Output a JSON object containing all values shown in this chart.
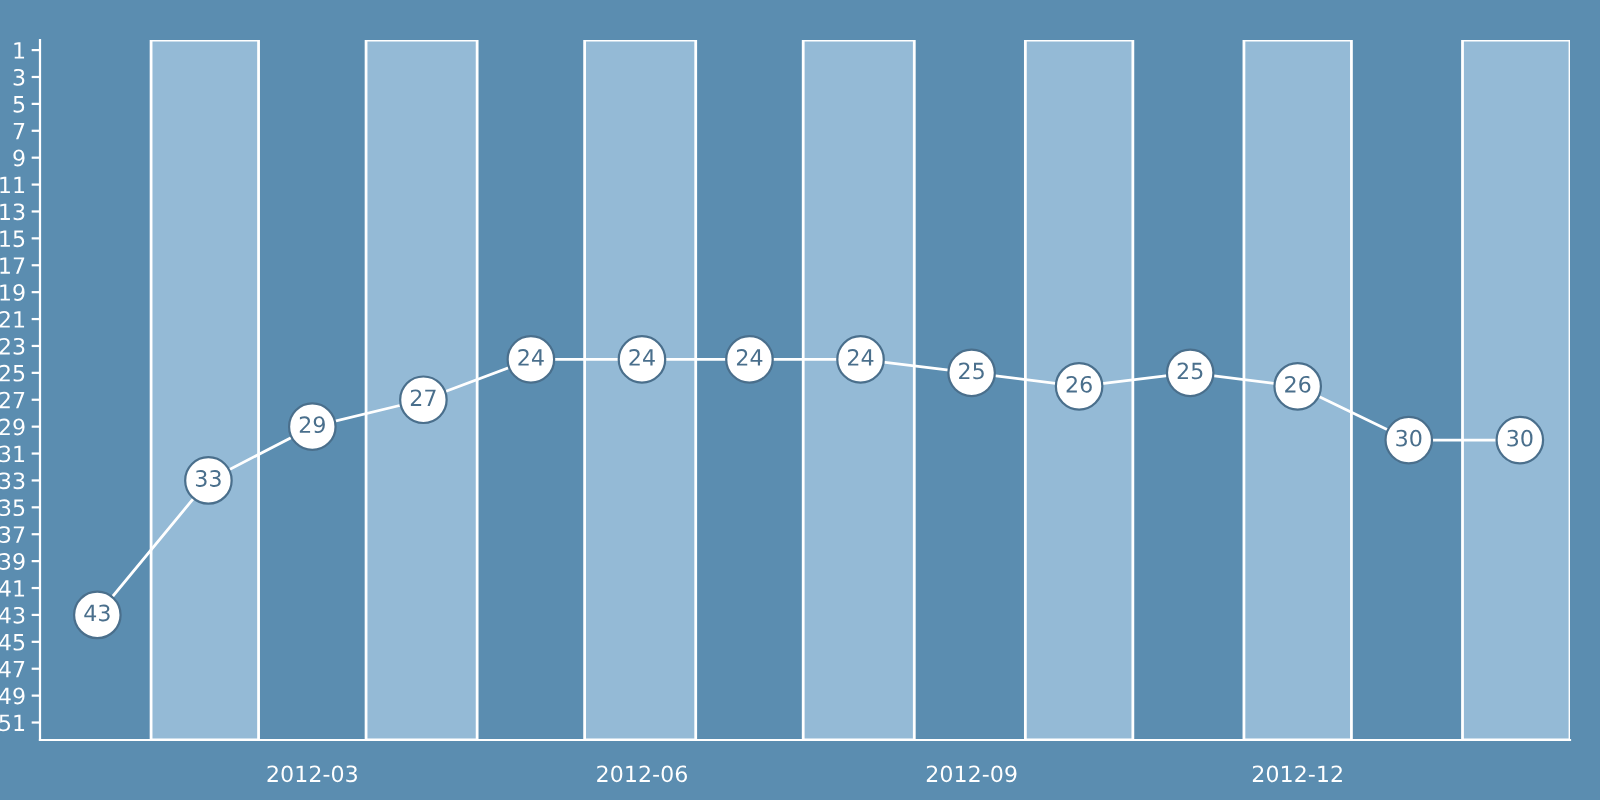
{
  "chart_data": {
    "type": "line",
    "x": [
      "2012-01",
      "2012-02",
      "2012-03",
      "2012-04",
      "2012-05",
      "2012-06",
      "2012-07",
      "2012-08",
      "2012-09",
      "2012-10",
      "2012-11",
      "2012-12",
      "2013-01",
      "2013-02"
    ],
    "values": [
      43,
      33,
      29,
      27,
      24,
      24,
      24,
      24,
      25,
      26,
      25,
      26,
      30,
      30
    ],
    "color": "#ffffff",
    "xlim": [
      "2011-12-16",
      "2013-02-15"
    ],
    "xticks": [
      "2012-03",
      "2012-06",
      "2012-09",
      "2012-12"
    ],
    "ylim": [
      52.3,
      0.25
    ],
    "yticks": [
      1,
      3,
      5,
      7,
      9,
      11,
      13,
      15,
      17,
      19,
      21,
      23,
      25,
      27,
      29,
      31,
      33,
      35,
      37,
      39,
      41,
      43,
      45,
      47,
      49,
      51
    ],
    "marker": "circle",
    "data_labels": true,
    "grid": false,
    "bands": [
      {
        "axis": "x",
        "from": "2012-01-16",
        "to": "2012-02-15",
        "color": "#94bad6"
      },
      {
        "axis": "x",
        "from": "2012-03-16",
        "to": "2012-04-16",
        "color": "#94bad6"
      },
      {
        "axis": "x",
        "from": "2012-05-16",
        "to": "2012-06-16",
        "color": "#94bad6"
      },
      {
        "axis": "x",
        "from": "2012-07-16",
        "to": "2012-08-16",
        "color": "#94bad6"
      },
      {
        "axis": "x",
        "from": "2012-09-16",
        "to": "2012-10-16",
        "color": "#94bad6"
      },
      {
        "axis": "x",
        "from": "2012-11-16",
        "to": "2012-12-16",
        "color": "#94bad6"
      },
      {
        "axis": "x",
        "from": "2013-01-16",
        "to": "2013-02-15",
        "color": "#94bad6"
      }
    ]
  }
}
